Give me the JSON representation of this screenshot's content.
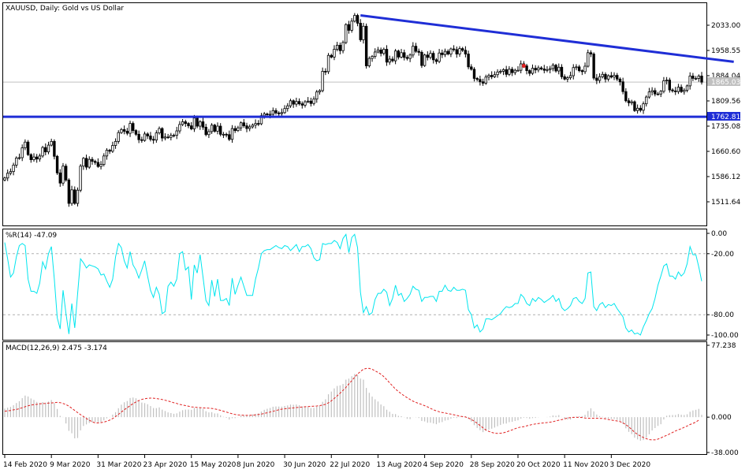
{
  "window": {
    "symbol": "XAUUSD",
    "timeframe": "Daily",
    "description": "Gold vs US Dollar"
  },
  "chart_data": [
    {
      "type": "candlestick",
      "title": "XAUUSD, Daily: Gold vs US Dollar",
      "ylim": [
        1475,
        2110
      ],
      "y_ticks": [
        "2033.00",
        "1958.55",
        "1884.04",
        "1809.56",
        "1735.08",
        "1660.60",
        "1586.12",
        "1511.64"
      ],
      "current_price": "1865.03",
      "support_level": "1762.81",
      "support_value": 1762.81,
      "grid": false,
      "colors": {
        "candle": "#000000",
        "trendline": "#1f2ed6",
        "support": "#1f2ed6",
        "price_line": "#c0c0c0"
      },
      "close": [
        1582,
        1596,
        1601,
        1620,
        1641,
        1642,
        1671,
        1688,
        1651,
        1636,
        1644,
        1638,
        1647,
        1672,
        1659,
        1679,
        1690,
        1646,
        1597,
        1567,
        1617,
        1576,
        1507,
        1547,
        1507,
        1546,
        1617,
        1640,
        1614,
        1637,
        1631,
        1628,
        1616,
        1622,
        1647,
        1664,
        1661,
        1678,
        1690,
        1716,
        1725,
        1720,
        1714,
        1743,
        1722,
        1711,
        1695,
        1693,
        1712,
        1706,
        1696,
        1694,
        1715,
        1728,
        1700,
        1703,
        1702,
        1708,
        1708,
        1721,
        1740,
        1748,
        1743,
        1736,
        1727,
        1759,
        1735,
        1748,
        1732,
        1710,
        1719,
        1738,
        1720,
        1735,
        1711,
        1711,
        1710,
        1696,
        1728,
        1722,
        1730,
        1745,
        1736,
        1728,
        1733,
        1738,
        1743,
        1742,
        1766,
        1771,
        1769,
        1770,
        1781,
        1774,
        1772,
        1775,
        1787,
        1795,
        1810,
        1800,
        1808,
        1801,
        1797,
        1807,
        1809,
        1802,
        1815,
        1836,
        1840,
        1897,
        1896,
        1944,
        1939,
        1962,
        1974,
        1958,
        1982,
        2035,
        2018,
        2045,
        2062,
        2039,
        1990,
        2030,
        1913,
        1935,
        1941,
        1954,
        1960,
        1950,
        1962,
        1924,
        1933,
        1928,
        1957,
        1939,
        1952,
        1938,
        1935,
        1945,
        1971,
        1956,
        1953,
        1914,
        1945,
        1938,
        1950,
        1931,
        1926,
        1951,
        1946,
        1956,
        1948,
        1963,
        1961,
        1948,
        1964,
        1959,
        1948,
        1910,
        1903,
        1876,
        1873,
        1866,
        1862,
        1880,
        1885,
        1881,
        1887,
        1895,
        1897,
        1902,
        1888,
        1903,
        1893,
        1900,
        1900,
        1919,
        1913,
        1899,
        1891,
        1906,
        1901,
        1907,
        1904,
        1900,
        1902,
        1905,
        1915,
        1898,
        1909,
        1881,
        1874,
        1878,
        1884,
        1908,
        1910,
        1899,
        1896,
        1912,
        1952,
        1948,
        1877,
        1870,
        1881,
        1888,
        1874,
        1884,
        1880,
        1885,
        1874,
        1866,
        1837,
        1810,
        1804,
        1807,
        1781,
        1788,
        1782,
        1801,
        1821,
        1836,
        1840,
        1830,
        1830,
        1838,
        1869,
        1871,
        1842,
        1839,
        1837,
        1850,
        1837,
        1841,
        1854,
        1883,
        1876,
        1876,
        1883,
        1865
      ]
    },
    {
      "type": "line",
      "title": "%R(14) -47.09",
      "indicator": "%R(14)",
      "last_value": -47.09,
      "ylim": [
        -100,
        0
      ],
      "y_ticks": [
        "0.00",
        "-20.00",
        "-80.00",
        "-100.00"
      ],
      "levels": [
        -20,
        -80
      ],
      "colors": {
        "line": "#00e5ee",
        "level": "#b0b0b0"
      },
      "values": [
        -9,
        -25,
        -43,
        -39,
        -23,
        -12,
        -10,
        -12,
        -45,
        -57,
        -57,
        -59,
        -49,
        -28,
        -35,
        -20,
        -13,
        -45,
        -83,
        -94,
        -56,
        -79,
        -99,
        -69,
        -93,
        -59,
        -25,
        -29,
        -34,
        -31,
        -32,
        -33,
        -35,
        -41,
        -40,
        -47,
        -53,
        -45,
        -23,
        -10,
        -14,
        -27,
        -34,
        -18,
        -31,
        -36,
        -44,
        -36,
        -27,
        -42,
        -56,
        -63,
        -53,
        -60,
        -79,
        -77,
        -52,
        -48,
        -52,
        -45,
        -20,
        -18,
        -36,
        -33,
        -65,
        -31,
        -39,
        -21,
        -43,
        -66,
        -71,
        -46,
        -62,
        -45,
        -66,
        -66,
        -64,
        -71,
        -44,
        -60,
        -51,
        -43,
        -52,
        -61,
        -61,
        -61,
        -45,
        -34,
        -20,
        -17,
        -16,
        -16,
        -14,
        -12,
        -14,
        -15,
        -12,
        -13,
        -17,
        -14,
        -11,
        -18,
        -13,
        -13,
        -11,
        -15,
        -24,
        -27,
        -26,
        -10,
        -11,
        -10,
        -10,
        -7,
        -9,
        -15,
        -5,
        -1,
        -19,
        -4,
        -1,
        -14,
        -58,
        -78,
        -72,
        -80,
        -78,
        -65,
        -59,
        -59,
        -55,
        -58,
        -71,
        -64,
        -51,
        -61,
        -59,
        -67,
        -64,
        -60,
        -52,
        -55,
        -56,
        -67,
        -63,
        -63,
        -62,
        -62,
        -67,
        -57,
        -57,
        -51,
        -56,
        -57,
        -53,
        -56,
        -56,
        -55,
        -56,
        -75,
        -80,
        -93,
        -90,
        -97,
        -94,
        -84,
        -84,
        -85,
        -83,
        -81,
        -79,
        -75,
        -72,
        -73,
        -72,
        -69,
        -69,
        -60,
        -63,
        -69,
        -71,
        -64,
        -67,
        -63,
        -65,
        -68,
        -66,
        -64,
        -61,
        -67,
        -64,
        -73,
        -76,
        -74,
        -71,
        -64,
        -63,
        -67,
        -69,
        -64,
        -39,
        -38,
        -72,
        -76,
        -70,
        -68,
        -73,
        -70,
        -71,
        -69,
        -74,
        -78,
        -82,
        -93,
        -97,
        -95,
        -99,
        -98,
        -100,
        -92,
        -86,
        -79,
        -74,
        -64,
        -51,
        -42,
        -32,
        -30,
        -42,
        -42,
        -45,
        -38,
        -42,
        -39,
        -30,
        -13,
        -21,
        -21,
        -33,
        -47
      ]
    },
    {
      "type": "bar+line",
      "title": "MACD(12,26,9) 2.475 -3.174",
      "indicator": "MACD(12,26,9)",
      "last_macd": 2.475,
      "last_signal": -3.174,
      "ylim": [
        -38,
        77.238
      ],
      "y_ticks": [
        "77.238",
        "0.000",
        "-38.000"
      ],
      "colors": {
        "histogram": "#c0c0c0",
        "signal": "#e02020"
      },
      "histogram": [
        9.2,
        10.2,
        11.0,
        12.8,
        15.2,
        17.1,
        20.4,
        23.2,
        22.2,
        20.1,
        18.5,
        16.4,
        15.4,
        16.2,
        15.6,
        16.8,
        18.4,
        15.2,
        8.8,
        1.4,
        0.2,
        -6.8,
        -14.7,
        -17.3,
        -22.8,
        -22.4,
        -14.2,
        -9.5,
        -7.8,
        -6.2,
        -5.5,
        -5.1,
        -5.6,
        -5.3,
        -3.4,
        -1.3,
        0.2,
        2.7,
        5.4,
        9.6,
        13.4,
        16.0,
        17.3,
        20.6,
        21.1,
        20.3,
        18.0,
        15.7,
        15.1,
        13.9,
        11.9,
        9.8,
        9.7,
        10.5,
        8.1,
        6.6,
        5.1,
        4.4,
        3.6,
        4.1,
        5.9,
        7.5,
        8.1,
        8.2,
        7.9,
        9.9,
        9.6,
        10.1,
        8.9,
        6.4,
        5.1,
        5.4,
        4.0,
        4.0,
        2.0,
        0.4,
        -0.7,
        -2.6,
        -1.1,
        -1.0,
        -0.2,
        1.6,
        2.1,
        1.9,
        2.3,
        2.9,
        3.6,
        4.0,
        6.0,
        7.9,
        9.0,
        9.9,
        11.2,
        11.5,
        11.4,
        11.3,
        12.0,
        12.6,
        13.5,
        13.3,
        13.6,
        12.8,
        11.6,
        11.2,
        10.8,
        9.8,
        10.0,
        11.3,
        12.0,
        16.5,
        19.2,
        24.6,
        27.5,
        30.9,
        33.5,
        34.1,
        35.7,
        40.3,
        41.4,
        44.0,
        46.4,
        45.5,
        41.4,
        40.3,
        31.4,
        26.2,
        22.1,
        19.2,
        16.8,
        13.6,
        11.8,
        8.0,
        5.8,
        3.5,
        3.3,
        1.4,
        1.0,
        -0.2,
        -1.8,
        -2.1,
        -0.1,
        -0.2,
        -0.9,
        -4.1,
        -4.6,
        -6.0,
        -6.0,
        -6.8,
        -7.6,
        -6.0,
        -5.3,
        -3.7,
        -3.1,
        -1.7,
        -0.7,
        -0.9,
        0.4,
        0.9,
        0.8,
        -2.0,
        -4.8,
        -8.6,
        -11.6,
        -14.0,
        -16.1,
        -14.8,
        -13.4,
        -12.4,
        -11.2,
        -9.8,
        -8.4,
        -7.1,
        -6.9,
        -5.4,
        -5.0,
        -4.1,
        -3.4,
        -1.6,
        -0.6,
        -0.9,
        -1.7,
        -1.0,
        -0.8,
        -0.2,
        0.0,
        0.0,
        0.2,
        0.6,
        1.8,
        1.5,
        2.2,
        0.2,
        -1.7,
        -2.5,
        -2.6,
        -0.9,
        0.6,
        1.0,
        1.1,
        2.5,
        6.6,
        9.5,
        6.2,
        2.8,
        1.1,
        0.4,
        -1.1,
        -1.5,
        -2.0,
        -2.0,
        -2.9,
        -4.3,
        -7.4,
        -12.0,
        -15.8,
        -18.3,
        -22.1,
        -23.9,
        -25.3,
        -24.6,
        -22.1,
        -18.4,
        -14.3,
        -11.7,
        -9.4,
        -7.6,
        -2.5,
        1.5,
        2.1,
        2.3,
        2.3,
        3.3,
        2.6,
        2.3,
        3.1,
        5.8,
        7.2,
        7.9,
        8.9,
        2.5
      ],
      "signal": [
        6.4,
        6.8,
        7.2,
        7.8,
        8.3,
        9.1,
        10.1,
        11.2,
        12.2,
        13.0,
        13.4,
        13.8,
        14.3,
        14.6,
        14.8,
        15.1,
        15.3,
        15.6,
        15.9,
        15.6,
        14.7,
        13.5,
        11.8,
        9.5,
        7.2,
        4.9,
        2.7,
        0.6,
        -1.5,
        -3.3,
        -5.0,
        -6.1,
        -6.2,
        -5.9,
        -5.3,
        -4.4,
        -3.2,
        -1.6,
        0.6,
        3.0,
        5.5,
        7.9,
        10.1,
        12.3,
        14.5,
        16.3,
        17.8,
        19.0,
        19.8,
        20.3,
        20.5,
        20.4,
        20.0,
        19.5,
        18.9,
        18.2,
        17.4,
        16.5,
        15.5,
        14.7,
        13.7,
        13.1,
        12.4,
        11.7,
        11.1,
        10.7,
        10.5,
        10.2,
        10.0,
        9.8,
        9.6,
        9.4,
        8.9,
        8.2,
        7.3,
        6.4,
        5.5,
        4.5,
        3.6,
        2.8,
        2.4,
        2.2,
        2.0,
        1.9,
        2.0,
        2.1,
        2.4,
        2.8,
        3.3,
        4.0,
        4.7,
        5.5,
        6.3,
        7.1,
        8.0,
        8.6,
        9.0,
        9.4,
        9.7,
        10.0,
        10.3,
        10.6,
        10.9,
        11.2,
        11.4,
        11.6,
        11.8,
        12.0,
        12.4,
        13.0,
        13.8,
        15.4,
        17.5,
        20.1,
        22.9,
        25.8,
        28.8,
        32.1,
        35.7,
        39.2,
        42.9,
        46.5,
        49.0,
        51.6,
        52.3,
        52.4,
        51.5,
        49.8,
        48.2,
        46.1,
        43.5,
        40.3,
        36.9,
        33.5,
        30.2,
        27.5,
        25.1,
        22.9,
        21.0,
        19.0,
        17.2,
        15.9,
        14.6,
        13.6,
        12.3,
        11.1,
        9.4,
        7.9,
        6.7,
        5.8,
        5.0,
        4.5,
        3.8,
        3.3,
        2.6,
        1.9,
        1.0,
        0.6,
        0.2,
        -1.0,
        -2.4,
        -4.4,
        -6.6,
        -9.0,
        -11.5,
        -13.8,
        -15.3,
        -16.4,
        -17.2,
        -17.5,
        -17.3,
        -16.8,
        -16.0,
        -14.8,
        -13.7,
        -12.4,
        -11.3,
        -10.6,
        -10.2,
        -9.3,
        -8.6,
        -7.8,
        -7.3,
        -6.9,
        -6.5,
        -6.1,
        -5.8,
        -5.4,
        -4.9,
        -4.0,
        -3.3,
        -2.7,
        -1.8,
        -0.9,
        -0.5,
        -0.2,
        -0.2,
        -0.2,
        -0.4,
        -1.0,
        -1.1,
        -1.2,
        -1.1,
        -1.1,
        -1.3,
        -1.4,
        -1.8,
        -2.5,
        -3.1,
        -3.6,
        -4.1,
        -4.8,
        -6.1,
        -8.0,
        -10.5,
        -13.3,
        -16.2,
        -18.5,
        -20.3,
        -21.8,
        -23.2,
        -24.1,
        -24.4,
        -24.4,
        -23.6,
        -22.3,
        -20.8,
        -19.5,
        -18.0,
        -16.5,
        -14.9,
        -13.6,
        -12.4,
        -11.0,
        -9.5,
        -7.9,
        -6.7,
        -5.3,
        -3.2
      ]
    }
  ],
  "x_axis": {
    "labels": [
      "14 Feb 2020",
      "9 Mar 2020",
      "31 Mar 2020",
      "23 Apr 2020",
      "15 May 2020",
      "8 Jun 2020",
      "30 Jun 2020",
      "22 Jul 2020",
      "13 Aug 2020",
      "4 Sep 2020",
      "28 Sep 2020",
      "20 Oct 2020",
      "11 Nov 2020",
      "3 Dec 2020"
    ],
    "label_bar_index": [
      0,
      16,
      32,
      48,
      64,
      80,
      96,
      112,
      128,
      144,
      160,
      176,
      192,
      208
    ]
  },
  "annotations": {
    "trendline": {
      "from_index": 122,
      "from_price": 2062,
      "to_index": 250,
      "to_price": 1925
    },
    "marker_index": 178
  }
}
